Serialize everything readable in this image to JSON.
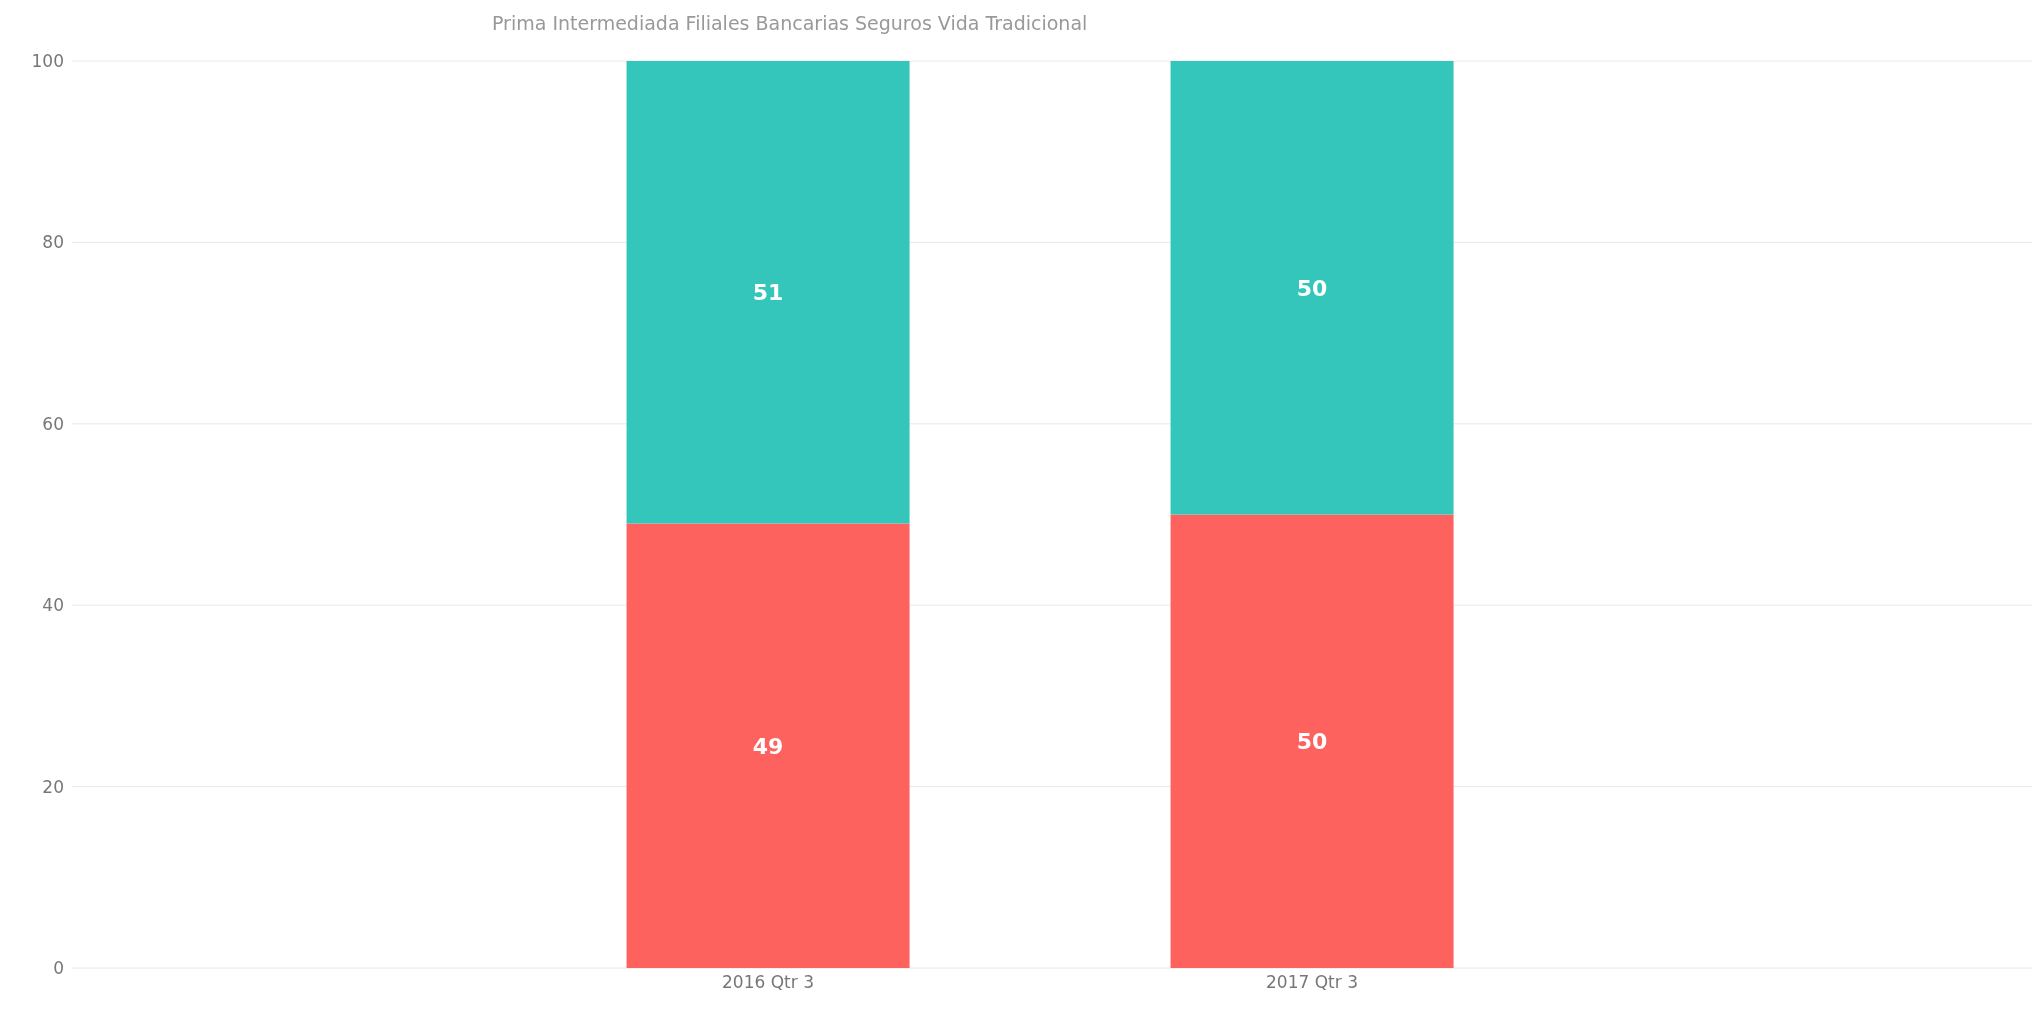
{
  "chart_data": {
    "type": "bar",
    "title": "Prima Intermediada Filiales Bancarias Seguros Vida Tradicional",
    "categories": [
      "2016 Qtr 3",
      "2017 Qtr 3"
    ],
    "series": [
      {
        "color": "#fd625e",
        "values": [
          49,
          50
        ]
      },
      {
        "color": "#34c6bb",
        "values": [
          51,
          50
        ]
      }
    ],
    "stacked": true,
    "ylim": [
      0,
      100
    ],
    "yticks": [
      0,
      20,
      40,
      60,
      80,
      100
    ],
    "grid": "y",
    "data_labels": true
  }
}
